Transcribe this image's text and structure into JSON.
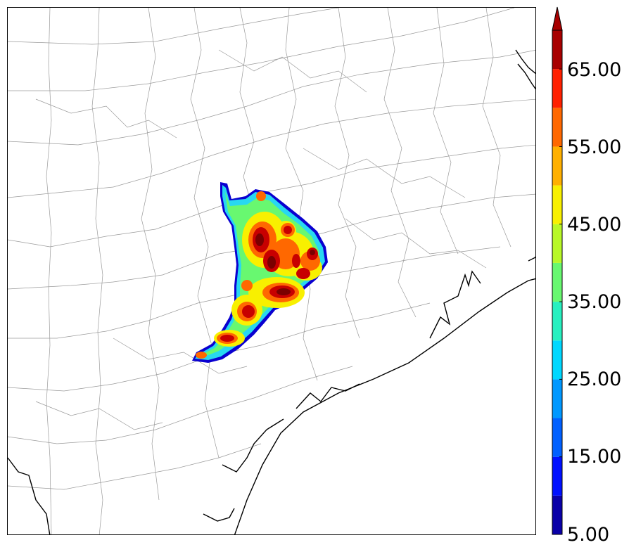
{
  "colorbar": {
    "tick_labels": [
      "5.00",
      "15.00",
      "25.00",
      "35.00",
      "45.00",
      "55.00",
      "65.00"
    ],
    "levels": [
      5,
      10,
      15,
      20,
      25,
      30,
      35,
      40,
      45,
      50,
      55,
      60,
      65,
      70
    ],
    "colors": [
      "#0a00a8",
      "#0010ff",
      "#0060ff",
      "#0098ff",
      "#00d8ff",
      "#28f0c0",
      "#68f870",
      "#b8f828",
      "#f8f000",
      "#ffb000",
      "#ff6800",
      "#ff2000",
      "#a80000"
    ],
    "extend": "max"
  },
  "map": {
    "field_colors": {
      "outer": "#0a00d0",
      "low": "#28d8f0",
      "mid": "#68f870",
      "high": "#f8f000",
      "upper": "#ff6800",
      "peak": "#c80000",
      "core": "#7a0000"
    },
    "coastline_color": "#000000",
    "county_line_color": "#9a9a9a"
  }
}
